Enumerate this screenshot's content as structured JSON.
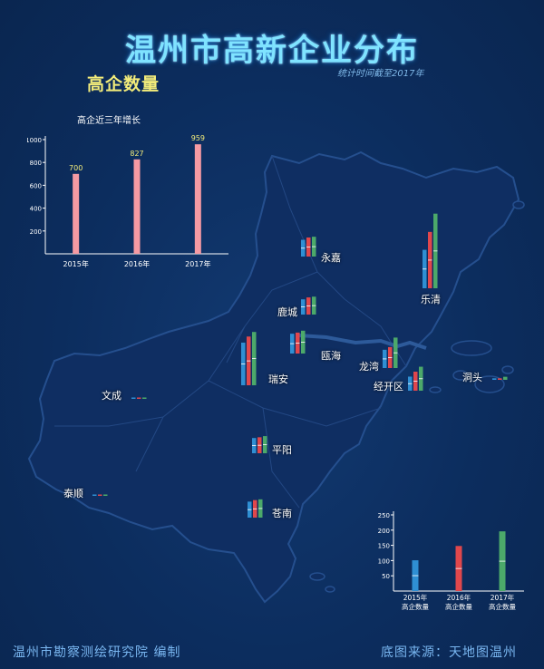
{
  "title": "温州市高新企业分布",
  "subtitle": "高企数量",
  "date_note": "统计时间截至2017年",
  "footer": {
    "left": "温州市勘察测绘研究院    编制",
    "right": "底图来源：天地图温州"
  },
  "colors": {
    "y2015": "#2f8fd3",
    "y2016": "#e0474c",
    "y2017": "#4ca96a",
    "growth_bar": "#f59aa3"
  },
  "regions": [
    {
      "id": "yongjia",
      "name": "永嘉",
      "values": [
        44,
        50,
        52
      ]
    },
    {
      "id": "yueqing",
      "name": "乐清",
      "values": [
        101,
        148,
        196
      ]
    },
    {
      "id": "lucheng",
      "name": "鹿城",
      "values": [
        40,
        45,
        47
      ]
    },
    {
      "id": "ouhai",
      "name": "瓯海",
      "values": [
        52,
        55,
        60
      ]
    },
    {
      "id": "longwan",
      "name": "龙湾",
      "values": [
        48,
        55,
        80
      ]
    },
    {
      "id": "ruian",
      "name": "瑞安",
      "values": [
        112,
        128,
        140
      ]
    },
    {
      "id": "jingkaiqu",
      "name": "经开区",
      "values": [
        37,
        50,
        63
      ]
    },
    {
      "id": "dongtou",
      "name": "洞头",
      "values": [
        4,
        4,
        8
      ]
    },
    {
      "id": "wencheng",
      "name": "文成",
      "values": [
        3,
        2,
        3
      ]
    },
    {
      "id": "pingyang",
      "name": "平阳",
      "values": [
        40,
        42,
        45
      ]
    },
    {
      "id": "taishun",
      "name": "泰顺",
      "values": [
        2,
        2,
        2
      ]
    },
    {
      "id": "cangnan",
      "name": "苍南",
      "values": [
        42,
        46,
        48
      ]
    }
  ],
  "chart_data": [
    {
      "type": "bar",
      "title": "高企近三年增长",
      "categories": [
        "2015年",
        "2016年",
        "2017年"
      ],
      "values": [
        700,
        827,
        959
      ],
      "data_labels": [
        "700",
        "827",
        "959"
      ],
      "ylim": [
        0,
        1000
      ],
      "yticks": [
        200,
        400,
        600,
        800,
        1000
      ],
      "grid": false
    },
    {
      "type": "bar",
      "title": "",
      "categories": [
        "2015年\n高企数量",
        "2016年\n高企数量",
        "2017年\n高企数量"
      ],
      "values": [
        101,
        148,
        196
      ],
      "ylim": [
        0,
        250
      ],
      "yticks": [
        50,
        100,
        150,
        200,
        250
      ],
      "grid": false
    }
  ]
}
